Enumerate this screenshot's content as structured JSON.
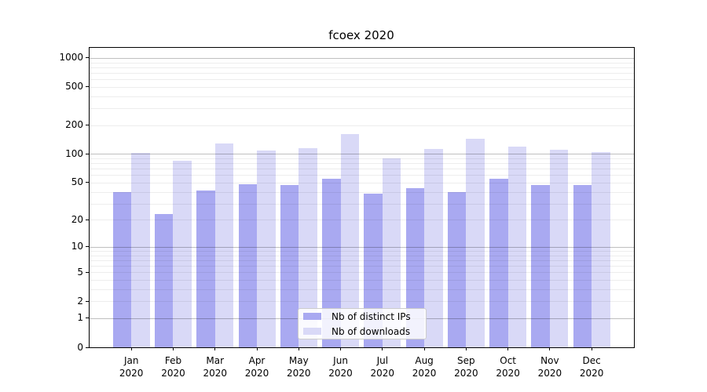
{
  "title": "fcoex 2020",
  "chart_data": {
    "type": "bar",
    "title": "fcoex 2020",
    "categories": [
      "Jan 2020",
      "Feb 2020",
      "Mar 2020",
      "Apr 2020",
      "May 2020",
      "Jun 2020",
      "Jul 2020",
      "Aug 2020",
      "Sep 2020",
      "Oct 2020",
      "Nov 2020",
      "Dec 2020"
    ],
    "series": [
      {
        "name": "Nb of distinct IPs",
        "values": [
          40,
          23,
          41,
          48,
          47,
          55,
          38,
          44,
          40,
          55,
          47,
          47
        ]
      },
      {
        "name": "Nb of downloads",
        "values": [
          102,
          85,
          129,
          109,
          115,
          162,
          90,
          113,
          145,
          120,
          111,
          105
        ]
      }
    ],
    "xlabel": "",
    "ylabel": "",
    "yticks": [
      0,
      1,
      2,
      5,
      10,
      20,
      50,
      100,
      200,
      500,
      1000
    ],
    "yscale": "log1p",
    "ylim": [
      0,
      1300
    ],
    "grid": true,
    "legend_position": "lower center"
  },
  "colors": {
    "series1_fill": "#a9a9f1",
    "series2_fill": "#d9d9f7",
    "grid_major": "rgba(0,0,0,0.25)",
    "grid_minor": "rgba(0,0,0,0.07)",
    "axis": "#000000",
    "background": "#ffffff"
  }
}
